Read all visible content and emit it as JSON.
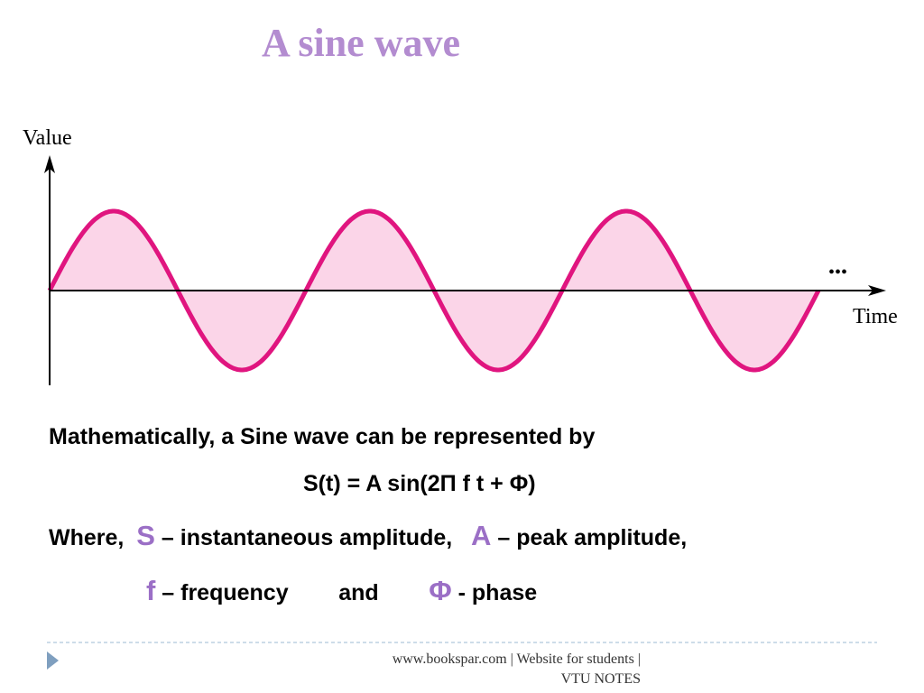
{
  "header": {
    "title": "A sine wave"
  },
  "diagram": {
    "y_label": "Value",
    "x_label": "Time",
    "ellipsis": "•••"
  },
  "body": {
    "intro": "Mathematically, a Sine wave can be represented by",
    "formula": "S(t) = A sin(2Π f t + Φ)",
    "where": "Where,",
    "s_symbol": "S",
    "s_text": "– instantaneous amplitude,",
    "a_symbol": "A",
    "a_text": "– peak amplitude,",
    "f_symbol": "f",
    "f_text": "– frequency",
    "and": "and",
    "phi_symbol": "Φ",
    "phi_text": "- phase"
  },
  "footer": {
    "line1": "www.bookspar.com | Website for students |",
    "line2": "VTU NOTES"
  }
}
